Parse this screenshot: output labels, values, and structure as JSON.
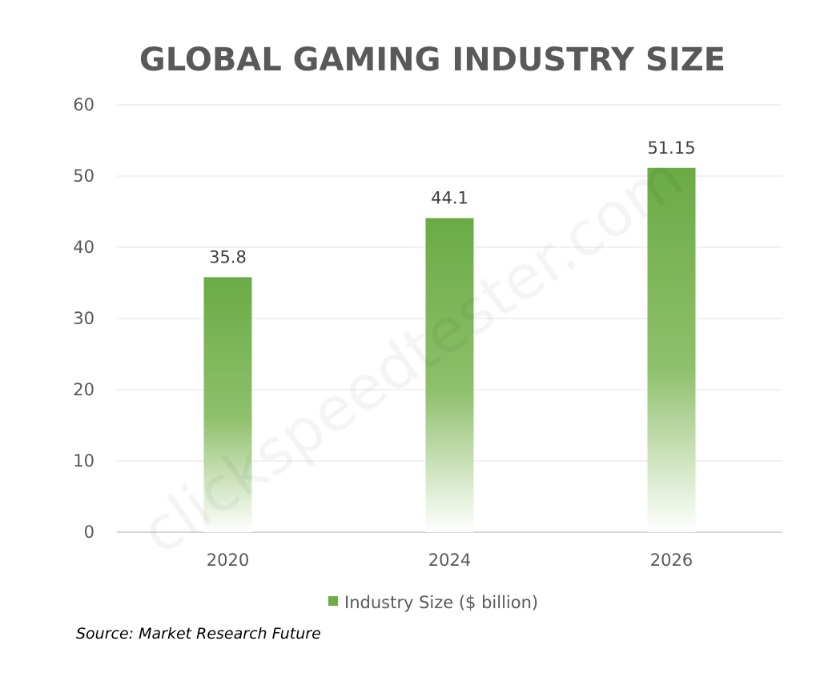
{
  "chart_data": {
    "type": "bar",
    "title": "GLOBAL GAMING INDUSTRY SIZE",
    "categories": [
      "2020",
      "2024",
      "2026"
    ],
    "series": [
      {
        "name": "Industry Size ($ billion)",
        "values": [
          35.8,
          44.1,
          51.15
        ],
        "data_labels": [
          "35.8",
          "44.1",
          "51.15"
        ]
      }
    ],
    "ylim": [
      0,
      60
    ],
    "yticks": [
      0,
      10,
      20,
      30,
      40,
      50,
      60
    ],
    "xlabel": "",
    "ylabel": "",
    "grid": true,
    "legend": "bottom-center"
  },
  "colors": {
    "bar_top": "#6aab45",
    "bar_bottom": "#ffffff",
    "title": "#595959",
    "legend_swatch": "#70ad47"
  },
  "source": "Source: Market Research Future",
  "watermark": "clickspeedtester.com"
}
